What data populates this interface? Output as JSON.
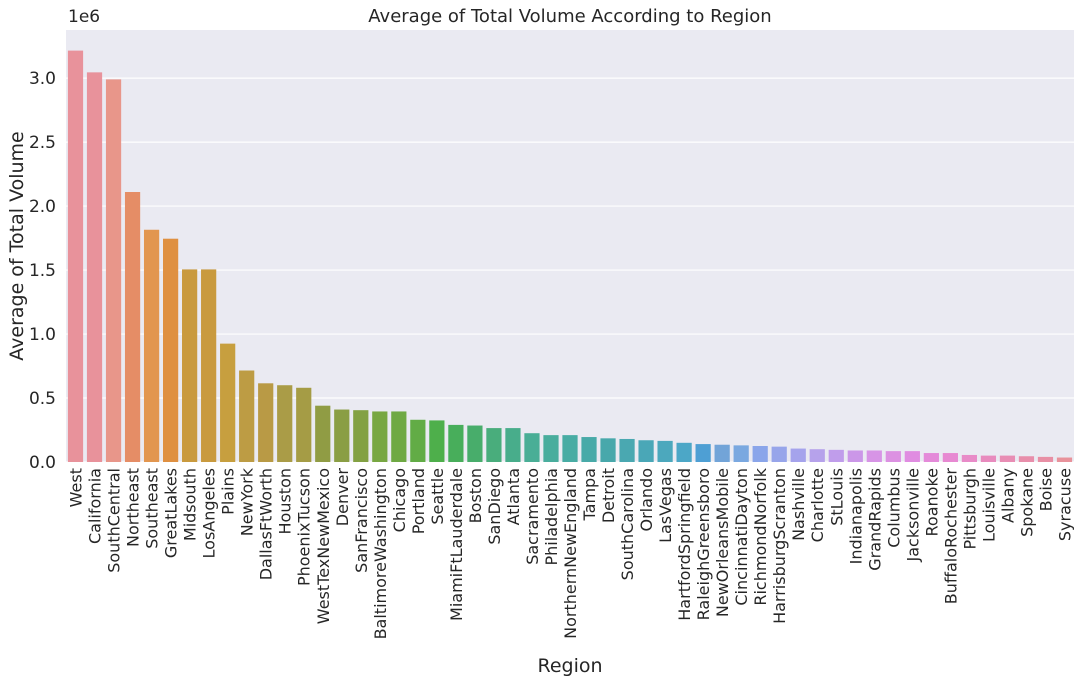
{
  "chart_data": {
    "type": "bar",
    "title": "Average of Total Volume According to Region",
    "xlabel": "Region",
    "ylabel": "Average of Total Volume",
    "y_offset_label": "1e6",
    "y_scale": 1000000,
    "ylim": [
      0,
      3376000
    ],
    "yticks": [
      0,
      500000,
      1000000,
      1500000,
      2000000,
      2500000,
      3000000
    ],
    "ytick_labels": [
      "0.0",
      "0.5",
      "1.0",
      "1.5",
      "2.0",
      "2.5",
      "3.0"
    ],
    "grid": true,
    "background": "#eaeaf2",
    "categories": [
      "West",
      "California",
      "SouthCentral",
      "Northeast",
      "Southeast",
      "GreatLakes",
      "Midsouth",
      "LosAngeles",
      "Plains",
      "NewYork",
      "DallasFtWorth",
      "Houston",
      "PhoenixTucson",
      "WestTexNewMexico",
      "Denver",
      "SanFrancisco",
      "BaltimoreWashington",
      "Chicago",
      "Portland",
      "Seattle",
      "MiamiFtLauderdale",
      "Boston",
      "SanDiego",
      "Atlanta",
      "Sacramento",
      "Philadelphia",
      "NorthernNewEngland",
      "Tampa",
      "Detroit",
      "SouthCarolina",
      "Orlando",
      "LasVegas",
      "HartfordSpringfield",
      "RaleighGreensboro",
      "NewOrleansMobile",
      "CincinnatiDayton",
      "RichmondNorfolk",
      "HarrisburgScranton",
      "Nashville",
      "Charlotte",
      "StLouis",
      "Indianapolis",
      "GrandRapids",
      "Columbus",
      "Jacksonville",
      "Roanoke",
      "BuffaloRochester",
      "Pittsburgh",
      "Louisville",
      "Albany",
      "Spokane",
      "Boise",
      "Syracuse"
    ],
    "values": [
      3215000,
      3045000,
      2990000,
      2110000,
      1815000,
      1745000,
      1505000,
      1505000,
      925000,
      715000,
      615000,
      600000,
      580000,
      440000,
      410000,
      405000,
      395000,
      395000,
      330000,
      325000,
      290000,
      285000,
      265000,
      265000,
      225000,
      210000,
      210000,
      195000,
      185000,
      180000,
      170000,
      165000,
      150000,
      140000,
      135000,
      130000,
      125000,
      120000,
      105000,
      100000,
      95000,
      90000,
      90000,
      85000,
      85000,
      70000,
      70000,
      55000,
      50000,
      50000,
      45000,
      40000,
      35000
    ],
    "colors": [
      "#e8929b",
      "#e8929b",
      "#e8968a",
      "#e58d66",
      "#e2964f",
      "#df9041",
      "#c99a3e",
      "#c99a3e",
      "#c79f3f",
      "#bd9c44",
      "#b99a45",
      "#aa9c47",
      "#a59c45",
      "#909c44",
      "#8a9e44",
      "#83a143",
      "#78a742",
      "#6fa943",
      "#62ac46",
      "#4eaf4b",
      "#48ae5b",
      "#48ad6b",
      "#49ad7c",
      "#48ad8b",
      "#49ae96",
      "#49ad9d",
      "#48aca4",
      "#48aaa8",
      "#48a8ab",
      "#4aa8b1",
      "#4aa7b7",
      "#4ca8bd",
      "#4ca7c7",
      "#4e9fd4",
      "#72a4d8",
      "#7aa8e0",
      "#8aa5ea",
      "#97a5ea",
      "#a5a3ec",
      "#b6a2eb",
      "#c09deb",
      "#cb97e8",
      "#d794e6",
      "#dc91e2",
      "#e08ce1",
      "#e48ad9",
      "#e789d2",
      "#e88bc8",
      "#e88bbe",
      "#e88db4",
      "#e88eab",
      "#e88fa5",
      "#e8929b"
    ]
  }
}
